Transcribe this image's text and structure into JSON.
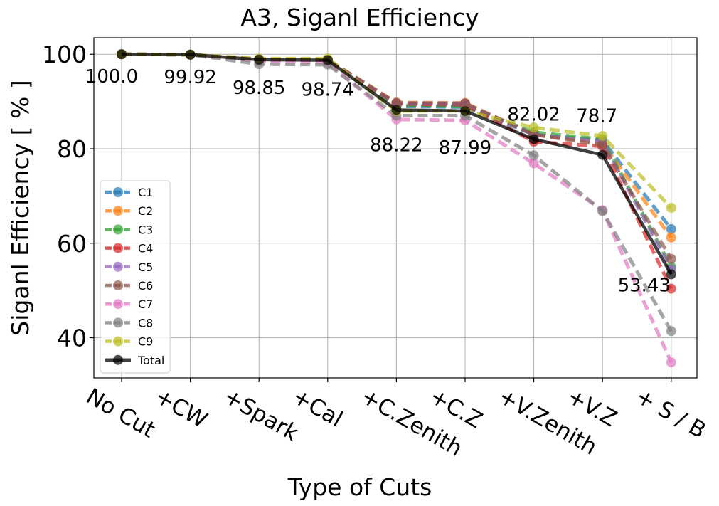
{
  "chart_data": {
    "type": "line",
    "title": "A3, Siganl Efficiency",
    "xlabel": "Type of Cuts",
    "ylabel": "Siganl Efficiency [ % ]",
    "ylim": [
      31.5,
      103.5
    ],
    "yticks": [
      40,
      60,
      80,
      100
    ],
    "grid": true,
    "legend_position": "center-left",
    "categories": [
      "No Cut",
      "+CW",
      "+Spark",
      "+Cal",
      "+C.Zenith",
      "+C.Z",
      "+V.Zenith",
      "+V.Z",
      "+ S / B"
    ],
    "series": [
      {
        "name": "C1",
        "color": "#1f77b4",
        "style": "dashed",
        "values": [
          100,
          99.92,
          98.9,
          98.8,
          89.0,
          88.8,
          83.0,
          81.8,
          63.0
        ]
      },
      {
        "name": "C2",
        "color": "#ff7f0e",
        "style": "dashed",
        "values": [
          100,
          99.92,
          98.9,
          98.8,
          89.8,
          89.7,
          83.0,
          81.2,
          61.2
        ]
      },
      {
        "name": "C3",
        "color": "#2ca02c",
        "style": "dashed",
        "values": [
          100,
          99.92,
          98.9,
          98.8,
          89.2,
          89.0,
          83.5,
          82.0,
          55.0
        ]
      },
      {
        "name": "C4",
        "color": "#d62728",
        "style": "dashed",
        "values": [
          100,
          99.92,
          98.9,
          98.8,
          89.5,
          89.3,
          81.5,
          80.5,
          50.4
        ]
      },
      {
        "name": "C5",
        "color": "#9467bd",
        "style": "dashed",
        "values": [
          100,
          99.92,
          98.9,
          98.8,
          89.6,
          89.5,
          83.0,
          81.5,
          54.5
        ]
      },
      {
        "name": "C6",
        "color": "#8c564b",
        "style": "dashed",
        "values": [
          100,
          99.92,
          98.9,
          98.8,
          89.7,
          89.6,
          83.0,
          80.8,
          56.7
        ]
      },
      {
        "name": "C7",
        "color": "#e377c2",
        "style": "dashed",
        "values": [
          100,
          99.92,
          98.5,
          98.2,
          86.2,
          86.0,
          76.9,
          67.0,
          34.8
        ]
      },
      {
        "name": "C8",
        "color": "#7f7f7f",
        "style": "dashed",
        "values": [
          100,
          99.92,
          97.9,
          97.8,
          87.0,
          87.0,
          78.6,
          66.8,
          41.4
        ]
      },
      {
        "name": "C9",
        "color": "#bcbd22",
        "style": "dashed",
        "values": [
          100,
          99.92,
          99.1,
          99.1,
          88.0,
          88.0,
          84.5,
          82.7,
          67.5
        ]
      },
      {
        "name": "Total",
        "color": "#000000",
        "style": "solid",
        "values": [
          100.0,
          99.92,
          98.85,
          98.74,
          88.22,
          87.99,
          82.02,
          78.7,
          53.43
        ]
      }
    ],
    "data_labels": [
      "100.0",
      "99.92",
      "98.85",
      "98.74",
      "88.22",
      "87.99",
      "82.02",
      "78.7",
      "53.43"
    ]
  }
}
